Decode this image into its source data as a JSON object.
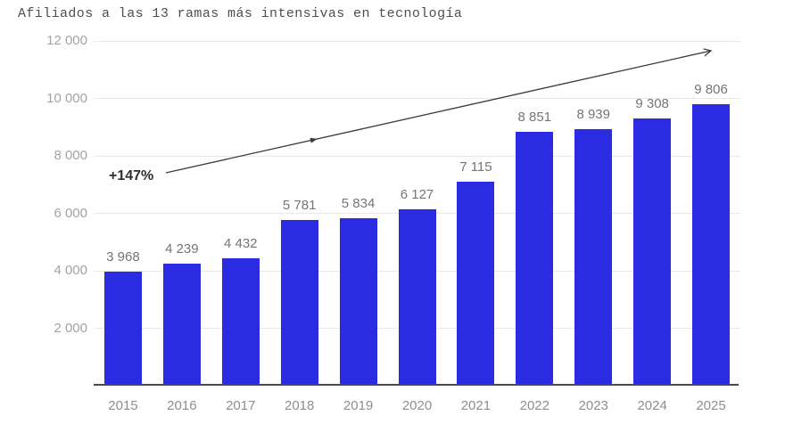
{
  "title": "Afiliados a las 13 ramas más intensivas en tecnología",
  "chart_data": {
    "type": "bar",
    "title": "Afiliados a las 13 ramas más intensivas en tecnología",
    "categories": [
      "2015",
      "2016",
      "2017",
      "2018",
      "2019",
      "2020",
      "2021",
      "2022",
      "2023",
      "2024",
      "2025"
    ],
    "values": [
      3968,
      4239,
      4432,
      5781,
      5834,
      6127,
      7115,
      8851,
      8939,
      9308,
      9806
    ],
    "value_labels": [
      "3 968",
      "4 239",
      "4 432",
      "5 781",
      "5 834",
      "6 127",
      "7 115",
      "8 851",
      "8 939",
      "9 308",
      "9 806"
    ],
    "xlabel": "",
    "ylabel": "",
    "ylim": [
      0,
      12000
    ],
    "y_ticks": [
      {
        "value": 2000,
        "label": "2 000"
      },
      {
        "value": 4000,
        "label": "4 000"
      },
      {
        "value": 6000,
        "label": "6 000"
      },
      {
        "value": 8000,
        "label": "8 000"
      },
      {
        "value": 10000,
        "label": "10 000"
      },
      {
        "value": 12000,
        "label": "12 000"
      }
    ],
    "grid": true,
    "legend": "none",
    "bar_color": "#2b2be1",
    "annotation": {
      "label": "+147%",
      "type": "trend-arrow"
    }
  },
  "colors": {
    "bar": "#2b2be1",
    "gridline": "#e9e9e9",
    "axis_line": "#4a4a4a",
    "tick_label": "#a3a3a3",
    "value_label": "#757575",
    "category_label": "#8e8e8e",
    "title": "#4f4f4f",
    "arrow": "#3a3a3a",
    "annotation_text": "#2e2e2e"
  }
}
